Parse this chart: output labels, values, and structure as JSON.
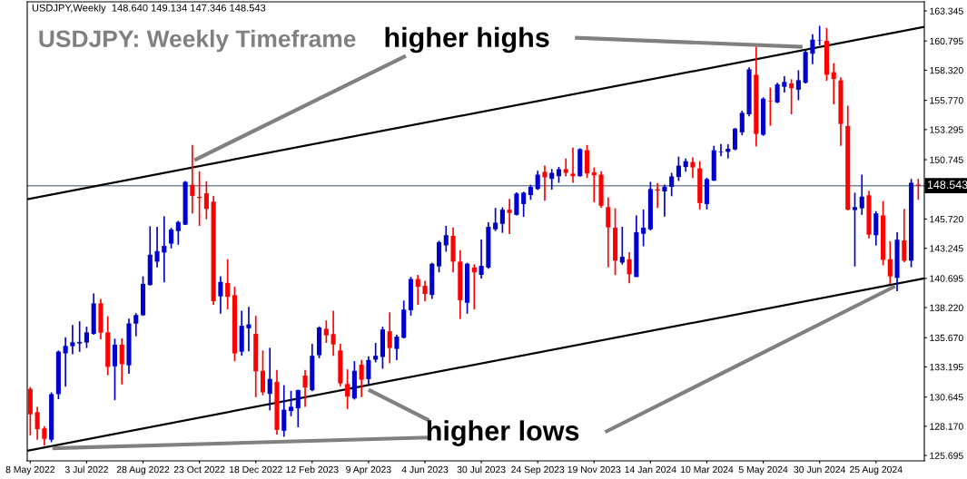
{
  "chart_data": {
    "type": "candlestick",
    "title": "USDJPY: Weekly Timeframe",
    "annotations": [
      "USDJPY,Weekly  148.640 149.134 147.346 148.543",
      "higher highs",
      "higher lows"
    ],
    "x": [
      "2022-05-08",
      "2022-05-15",
      "2022-05-22",
      "2022-05-29",
      "2022-06-05",
      "2022-06-12",
      "2022-06-19",
      "2022-06-26",
      "2022-07-03",
      "2022-07-10",
      "2022-07-17",
      "2022-07-24",
      "2022-07-31",
      "2022-08-07",
      "2022-08-14",
      "2022-08-21",
      "2022-08-28",
      "2022-09-04",
      "2022-09-11",
      "2022-09-18",
      "2022-09-25",
      "2022-10-02",
      "2022-10-09",
      "2022-10-16",
      "2022-10-23",
      "2022-10-30",
      "2022-11-06",
      "2022-11-13",
      "2022-11-20",
      "2022-11-27",
      "2022-12-04",
      "2022-12-11",
      "2022-12-18",
      "2022-12-25",
      "2023-01-01",
      "2023-01-08",
      "2023-01-15",
      "2023-01-22",
      "2023-01-29",
      "2023-02-05",
      "2023-02-12",
      "2023-02-19",
      "2023-02-26",
      "2023-03-05",
      "2023-03-12",
      "2023-03-19",
      "2023-03-26",
      "2023-04-02",
      "2023-04-09",
      "2023-04-16",
      "2023-04-23",
      "2023-04-30",
      "2023-05-07",
      "2023-05-14",
      "2023-05-21",
      "2023-05-28",
      "2023-06-04",
      "2023-06-11",
      "2023-06-18",
      "2023-06-25",
      "2023-07-02",
      "2023-07-09",
      "2023-07-16",
      "2023-07-23",
      "2023-07-30",
      "2023-08-06",
      "2023-08-13",
      "2023-08-20",
      "2023-08-27",
      "2023-09-03",
      "2023-09-10",
      "2023-09-17",
      "2023-09-24",
      "2023-10-01",
      "2023-10-08",
      "2023-10-15",
      "2023-10-22",
      "2023-10-29",
      "2023-11-05",
      "2023-11-12",
      "2023-11-19",
      "2023-11-26",
      "2023-12-03",
      "2023-12-10",
      "2023-12-17",
      "2023-12-24",
      "2023-12-31",
      "2024-01-07",
      "2024-01-14",
      "2024-01-21",
      "2024-01-28",
      "2024-02-04",
      "2024-02-11",
      "2024-02-18",
      "2024-02-25",
      "2024-03-03",
      "2024-03-10",
      "2024-03-17",
      "2024-03-24",
      "2024-03-31",
      "2024-04-07",
      "2024-04-14",
      "2024-04-21",
      "2024-04-28",
      "2024-05-05",
      "2024-05-12",
      "2024-05-19",
      "2024-05-26",
      "2024-06-02",
      "2024-06-09",
      "2024-06-16",
      "2024-06-23",
      "2024-06-30",
      "2024-07-07",
      "2024-07-14",
      "2024-07-21",
      "2024-07-28",
      "2024-08-04",
      "2024-08-11",
      "2024-08-18",
      "2024-08-25",
      "2024-09-01",
      "2024-09-08",
      "2024-09-15",
      "2024-09-22",
      "2024-09-29",
      "2024-10-06"
    ],
    "ohlc": [
      [
        131.34,
        131.5,
        127.4,
        129.18
      ],
      [
        129.36,
        129.82,
        127.03,
        127.92
      ],
      [
        127.99,
        128.17,
        126.52,
        127.1
      ],
      [
        127.03,
        131.04,
        126.82,
        130.89
      ],
      [
        130.89,
        134.59,
        130.46,
        134.49
      ],
      [
        134.34,
        135.71,
        131.52,
        134.98
      ],
      [
        134.95,
        136.75,
        134.26,
        135.28
      ],
      [
        135.18,
        137.06,
        134.47,
        135.31
      ],
      [
        135.26,
        136.6,
        134.8,
        136.12
      ],
      [
        135.99,
        139.42,
        135.92,
        138.58
      ],
      [
        138.58,
        138.96,
        135.53,
        136.09
      ],
      [
        136.12,
        137.49,
        132.49,
        133.2
      ],
      [
        133.25,
        135.59,
        130.38,
        135.08
      ],
      [
        135.08,
        135.61,
        131.72,
        133.43
      ],
      [
        133.33,
        137.29,
        132.61,
        136.88
      ],
      [
        136.86,
        137.75,
        135.79,
        137.59
      ],
      [
        137.57,
        140.87,
        137.52,
        140.23
      ],
      [
        140.13,
        145.11,
        140.08,
        142.7
      ],
      [
        142.11,
        145.06,
        141.63,
        143.0
      ],
      [
        142.88,
        145.95,
        140.36,
        143.44
      ],
      [
        143.64,
        144.98,
        143.23,
        144.83
      ],
      [
        144.7,
        145.57,
        143.54,
        145.47
      ],
      [
        145.24,
        148.95,
        145.21,
        148.87
      ],
      [
        148.62,
        151.99,
        146.2,
        147.68
      ],
      [
        147.6,
        149.76,
        145.14,
        147.5
      ],
      [
        147.9,
        148.92,
        145.7,
        146.58
      ],
      [
        147.19,
        147.68,
        138.46,
        138.76
      ],
      [
        139.17,
        140.87,
        137.7,
        140.39
      ],
      [
        140.31,
        142.32,
        138.07,
        139.14
      ],
      [
        139.27,
        139.98,
        133.68,
        134.34
      ],
      [
        134.49,
        137.95,
        134.14,
        136.68
      ],
      [
        136.47,
        138.28,
        134.52,
        136.8
      ],
      [
        135.99,
        137.52,
        130.63,
        132.82
      ],
      [
        132.87,
        134.59,
        130.79,
        131.04
      ],
      [
        130.91,
        134.82,
        129.51,
        132.18
      ],
      [
        131.93,
        132.94,
        127.46,
        127.86
      ],
      [
        127.79,
        131.65,
        127.28,
        129.57
      ],
      [
        129.46,
        131.17,
        129.01,
        129.82
      ],
      [
        129.69,
        131.27,
        128.09,
        131.24
      ],
      [
        132.46,
        132.94,
        129.82,
        131.45
      ],
      [
        131.22,
        135.15,
        131.14,
        134.14
      ],
      [
        134.19,
        136.63,
        133.93,
        136.53
      ],
      [
        136.42,
        137.13,
        135.23,
        135.87
      ],
      [
        135.97,
        137.95,
        134.14,
        135.1
      ],
      [
        134.59,
        135.15,
        131.55,
        131.8
      ],
      [
        131.75,
        132.99,
        129.62,
        130.68
      ],
      [
        130.53,
        133.68,
        130.43,
        132.87
      ],
      [
        133.38,
        133.78,
        130.63,
        132.11
      ],
      [
        132.16,
        134.09,
        131.72,
        133.78
      ],
      [
        133.81,
        135.23,
        133.58,
        134.14
      ],
      [
        134.04,
        136.6,
        133.04,
        136.37
      ],
      [
        136.22,
        137.82,
        133.5,
        134.8
      ],
      [
        134.72,
        135.92,
        133.76,
        135.76
      ],
      [
        135.66,
        138.81,
        135.61,
        138.05
      ],
      [
        138.0,
        140.82,
        137.54,
        140.64
      ],
      [
        140.64,
        140.99,
        138.46,
        139.98
      ],
      [
        140.06,
        140.49,
        138.76,
        139.37
      ],
      [
        139.29,
        142.01,
        138.96,
        141.94
      ],
      [
        141.71,
        143.89,
        141.2,
        143.76
      ],
      [
        143.49,
        145.14,
        142.95,
        144.35
      ],
      [
        144.3,
        145.01,
        141.2,
        142.11
      ],
      [
        142.11,
        143.08,
        137.26,
        138.84
      ],
      [
        138.63,
        142.01,
        137.7,
        141.94
      ],
      [
        141.61,
        141.88,
        138.07,
        141.2
      ],
      [
        140.99,
        143.99,
        140.69,
        141.76
      ],
      [
        141.61,
        145.44,
        141.5,
        145.06
      ],
      [
        144.85,
        146.66,
        144.7,
        145.41
      ],
      [
        145.31,
        146.71,
        144.55,
        146.51
      ],
      [
        146.51,
        147.42,
        144.45,
        146.23
      ],
      [
        146.07,
        147.98,
        146.02,
        147.88
      ],
      [
        146.99,
        148.03,
        145.9,
        147.95
      ],
      [
        147.75,
        148.62,
        147.34,
        148.44
      ],
      [
        148.26,
        149.81,
        148.18,
        149.48
      ],
      [
        149.71,
        150.24,
        147.27,
        149.25
      ],
      [
        149.12,
        149.96,
        148.21,
        149.63
      ],
      [
        149.35,
        150.14,
        148.79,
        149.94
      ],
      [
        149.94,
        150.85,
        149.33,
        149.63
      ],
      [
        149.56,
        151.77,
        148.79,
        149.35
      ],
      [
        149.35,
        151.71,
        149.3,
        151.64
      ],
      [
        151.54,
        151.99,
        149.2,
        149.58
      ],
      [
        149.68,
        150.09,
        147.14,
        149.43
      ],
      [
        149.48,
        149.76,
        146.68,
        146.84
      ],
      [
        146.73,
        147.55,
        141.63,
        145.01
      ],
      [
        144.98,
        146.63,
        140.97,
        142.2
      ],
      [
        142.03,
        145.06,
        141.86,
        142.52
      ],
      [
        142.31,
        142.92,
        140.28,
        141.04
      ],
      [
        140.81,
        146.02,
        140.81,
        144.6
      ],
      [
        144.47,
        146.53,
        143.41,
        144.98
      ],
      [
        144.85,
        148.87,
        144.75,
        148.26
      ],
      [
        148.23,
        148.77,
        146.66,
        148.13
      ],
      [
        148.06,
        148.64,
        145.92,
        148.46
      ],
      [
        148.44,
        149.63,
        147.65,
        149.33
      ],
      [
        149.28,
        151.0,
        148.94,
        150.24
      ],
      [
        150.12,
        150.85,
        149.73,
        150.62
      ],
      [
        150.55,
        150.93,
        149.2,
        150.09
      ],
      [
        150.01,
        150.62,
        146.53,
        147.07
      ],
      [
        146.99,
        149.22,
        146.53,
        149.1
      ],
      [
        148.97,
        151.92,
        148.94,
        151.54
      ],
      [
        151.36,
        152.07,
        151.03,
        151.41
      ],
      [
        151.41,
        152.05,
        150.85,
        151.67
      ],
      [
        151.61,
        153.44,
        151.54,
        153.37
      ],
      [
        153.06,
        154.89,
        152.81,
        154.71
      ],
      [
        154.59,
        158.57,
        154.41,
        158.4
      ],
      [
        157.94,
        160.3,
        151.87,
        152.93
      ],
      [
        152.86,
        156.03,
        152.76,
        155.91
      ],
      [
        155.73,
        156.85,
        153.62,
        155.68
      ],
      [
        155.6,
        157.26,
        155.53,
        157.13
      ],
      [
        156.92,
        157.81,
        156.44,
        157.33
      ],
      [
        157.2,
        157.56,
        154.59,
        156.8
      ],
      [
        156.67,
        158.32,
        155.78,
        157.48
      ],
      [
        157.26,
        159.97,
        157.2,
        159.87
      ],
      [
        159.72,
        161.37,
        158.83,
        160.91
      ],
      [
        160.81,
        162.08,
        160.43,
        160.84
      ],
      [
        160.81,
        161.9,
        157.43,
        157.94
      ],
      [
        158.15,
        158.91,
        155.43,
        157.58
      ],
      [
        157.46,
        157.71,
        151.92,
        153.77
      ],
      [
        153.6,
        155.32,
        146.45,
        146.51
      ],
      [
        146.48,
        147.95,
        141.7,
        146.73
      ],
      [
        146.63,
        149.48,
        146.07,
        147.62
      ],
      [
        147.73,
        148.1,
        144.09,
        144.4
      ],
      [
        144.35,
        146.38,
        143.48,
        146.2
      ],
      [
        146.02,
        147.24,
        141.8,
        142.26
      ],
      [
        142.31,
        143.84,
        140.23,
        140.86
      ],
      [
        140.74,
        144.6,
        139.6,
        143.97
      ],
      [
        143.91,
        146.58,
        142.06,
        142.19
      ],
      [
        142.19,
        149.12,
        141.63,
        148.79
      ],
      [
        148.64,
        149.134,
        147.346,
        148.543
      ]
    ],
    "colors": [
      "#ff0000",
      "#ff0000",
      "#ff0000",
      "#0000cd",
      "#0000cd",
      "#0000cd",
      "#0000cd",
      "#0000cd",
      "#0000cd",
      "#0000cd",
      "#ff0000",
      "#ff0000",
      "#0000cd",
      "#ff0000",
      "#0000cd",
      "#0000cd",
      "#0000cd",
      "#0000cd",
      "#0000cd",
      "#0000cd",
      "#0000cd",
      "#0000cd",
      "#0000cd",
      "#ff0000",
      "#ff0000",
      "#ff0000",
      "#ff0000",
      "#0000cd",
      "#ff0000",
      "#ff0000",
      "#0000cd",
      "#0000cd",
      "#ff0000",
      "#ff0000",
      "#0000cd",
      "#ff0000",
      "#0000cd",
      "#0000cd",
      "#0000cd",
      "#ff0000",
      "#0000cd",
      "#0000cd",
      "#ff0000",
      "#ff0000",
      "#ff0000",
      "#ff0000",
      "#0000cd",
      "#ff0000",
      "#0000cd",
      "#0000cd",
      "#0000cd",
      "#ff0000",
      "#0000cd",
      "#0000cd",
      "#0000cd",
      "#ff0000",
      "#ff0000",
      "#0000cd",
      "#0000cd",
      "#0000cd",
      "#ff0000",
      "#ff0000",
      "#0000cd",
      "#ff0000",
      "#0000cd",
      "#0000cd",
      "#0000cd",
      "#0000cd",
      "#ff0000",
      "#0000cd",
      "#0000cd",
      "#0000cd",
      "#0000cd",
      "#ff0000",
      "#0000cd",
      "#0000cd",
      "#ff0000",
      "#ff0000",
      "#0000cd",
      "#ff0000",
      "#ff0000",
      "#ff0000",
      "#ff0000",
      "#ff0000",
      "#0000cd",
      "#ff0000",
      "#0000cd",
      "#0000cd",
      "#0000cd",
      "#ff0000",
      "#0000cd",
      "#0000cd",
      "#0000cd",
      "#0000cd",
      "#ff0000",
      "#ff0000",
      "#0000cd",
      "#0000cd",
      "#0000cd",
      "#0000cd",
      "#0000cd",
      "#0000cd",
      "#0000cd",
      "#ff0000",
      "#0000cd",
      "#ff0000",
      "#0000cd",
      "#0000cd",
      "#ff0000",
      "#0000cd",
      "#0000cd",
      "#0000cd",
      "#0000cd",
      "#ff0000",
      "#ff0000",
      "#ff0000",
      "#ff0000",
      "#0000cd",
      "#0000cd",
      "#ff0000",
      "#0000cd",
      "#ff0000",
      "#ff0000",
      "#0000cd",
      "#ff0000",
      "#0000cd",
      "#ff0000"
    ],
    "series": [
      {
        "type": "line",
        "color": "#000000",
        "x": [
          "2022-05-05",
          "2024-10-12"
        ],
        "values": [
          147.4,
          162.0
        ]
      },
      {
        "type": "line",
        "color": "#000000",
        "x": [
          "2022-05-05",
          "2024-10-12"
        ],
        "values": [
          126.1,
          140.7
        ]
      },
      {
        "type": "line",
        "color": "#808080",
        "x": [
          "2023-05-16",
          "2022-10-18"
        ],
        "values": [
          159.54,
          150.7
        ]
      },
      {
        "type": "line",
        "color": "#808080",
        "x": [
          "2023-10-31",
          "2024-06-13"
        ],
        "values": [
          161.07,
          160.3
        ]
      },
      {
        "type": "line",
        "color": "#808080",
        "x": [
          "2023-06-08",
          "2022-05-30"
        ],
        "values": [
          127.22,
          126.3
        ]
      },
      {
        "type": "line",
        "color": "#808080",
        "x": [
          "2023-06-08",
          "2023-04-09"
        ],
        "values": [
          128.67,
          131.26
        ]
      },
      {
        "type": "line",
        "color": "#808080",
        "x": [
          "2023-11-30",
          "2024-09-13"
        ],
        "values": [
          127.68,
          140.03
        ]
      }
    ],
    "ref_lines": [
      {
        "axis": "y",
        "value": 148.543,
        "label": "148.543",
        "color": "#778899"
      }
    ],
    "xlim": [
      "2022-05-05",
      "2024-10-12"
    ],
    "xticks": [
      {
        "value": "2022-05-08",
        "label": "8 May 2022"
      },
      {
        "value": "2022-07-03",
        "label": "3 Jul 2022"
      },
      {
        "value": "2022-08-28",
        "label": "28 Aug 2022"
      },
      {
        "value": "2022-10-23",
        "label": "23 Oct 2022"
      },
      {
        "value": "2022-12-18",
        "label": "18 Dec 2022"
      },
      {
        "value": "2023-02-12",
        "label": "12 Feb 2023"
      },
      {
        "value": "2023-04-09",
        "label": "9 Apr 2023"
      },
      {
        "value": "2023-06-04",
        "label": "4 Jun 2023"
      },
      {
        "value": "2023-07-30",
        "label": "30 Jul 2023"
      },
      {
        "value": "2023-09-24",
        "label": "24 Sep 2023"
      },
      {
        "value": "2023-11-19",
        "label": "19 Nov 2023"
      },
      {
        "value": "2024-01-14",
        "label": "14 Jan 2024"
      },
      {
        "value": "2024-03-10",
        "label": "10 Mar 2024"
      },
      {
        "value": "2024-05-05",
        "label": "5 May 2024"
      },
      {
        "value": "2024-06-30",
        "label": "30 Jun 2024"
      },
      {
        "value": "2024-08-25",
        "label": "25 Aug 2024"
      }
    ],
    "ylim": [
      125.24,
      164.115
    ],
    "yticks": [
      163.345,
      160.795,
      {
        "value": 158.32,
        "label": "158.320"
      },
      {
        "value": 155.77,
        "label": "155.770"
      },
      153.295,
      150.745,
      {
        "value": 145.72,
        "label": "145.720"
      },
      143.245,
      140.695,
      {
        "value": 138.22,
        "label": "138.220"
      },
      {
        "value": 135.67,
        "label": "135.670"
      },
      133.195,
      130.645,
      {
        "value": 128.17,
        "label": "128.170"
      },
      125.695
    ],
    "grid": false
  }
}
